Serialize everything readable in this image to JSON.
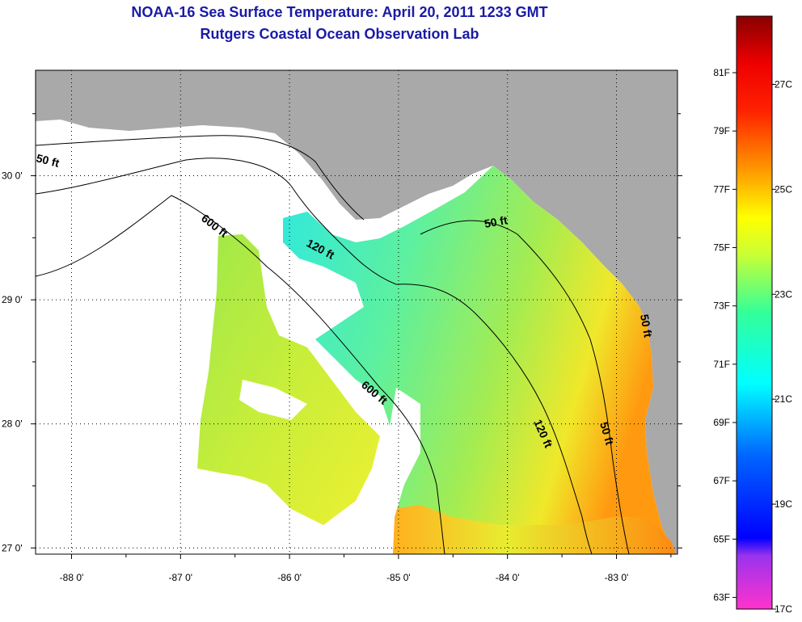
{
  "title": "NOAA-16 Sea Surface Temperature:  April 20, 2011 1233 GMT",
  "subtitle": "Rutgers Coastal Ocean Observation Lab",
  "map": {
    "lon_labels": [
      "-88 0'",
      "-87 0'",
      "-86 0'",
      "-85 0'",
      "-84 0'",
      "-83 0'"
    ],
    "lon_values": [
      -88,
      -87,
      -86,
      -85,
      -84,
      -83
    ],
    "lat_labels": [
      "30 0'",
      "29 0'",
      "28 0'",
      "27 0'"
    ],
    "lat_values": [
      30,
      29,
      28,
      27
    ],
    "lon_range": [
      -88.33,
      -82.44
    ],
    "lat_range": [
      26.95,
      30.85
    ],
    "contour_labels": [
      "50 ft",
      "600 ft",
      "120 ft",
      "50 ft",
      "600 ft",
      "120 ft",
      "50 ft",
      "50 ft"
    ],
    "colors": {
      "land": "#a9a9a9",
      "no_data": "#ffffff",
      "cloud": "#ffffff"
    }
  },
  "colorbar": {
    "f_labels": [
      "81F",
      "79F",
      "77F",
      "75F",
      "73F",
      "71F",
      "69F",
      "67F",
      "65F",
      "63F"
    ],
    "c_labels": [
      "27C",
      "25C",
      "23C",
      "21C",
      "19C",
      "17C"
    ],
    "f_values": [
      81,
      79,
      77,
      75,
      73,
      71,
      69,
      67,
      65,
      63
    ],
    "c_values": [
      27,
      25,
      23,
      21,
      19,
      17
    ],
    "range_c": [
      17,
      28.3
    ],
    "colors": [
      "#ff33cc",
      "#8833ff",
      "#0000ff",
      "#0099ff",
      "#00ffff",
      "#33ff99",
      "#99ff33",
      "#ffff00",
      "#ffaa00",
      "#ff5500",
      "#ff0000",
      "#880000"
    ]
  }
}
